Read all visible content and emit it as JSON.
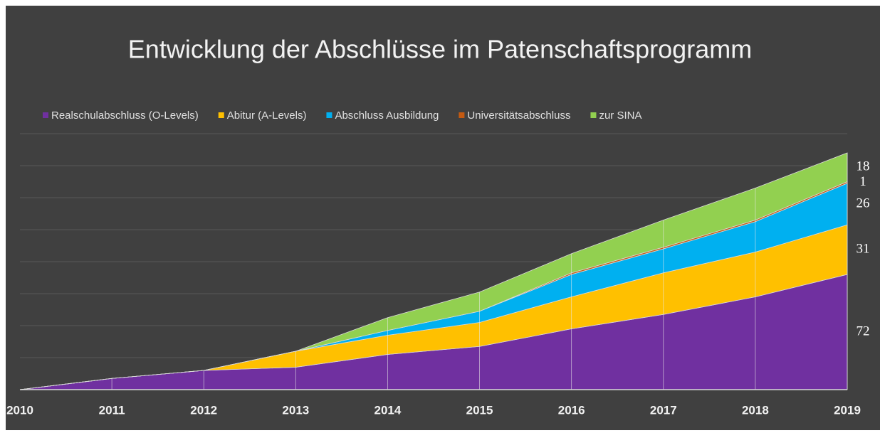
{
  "chart_data": {
    "type": "area_stacked",
    "title": "Entwicklung der Abschlüsse im Patenschaftsprogramm",
    "categories": [
      "2010",
      "2011",
      "2012",
      "2013",
      "2014",
      "2015",
      "2016",
      "2017",
      "2018",
      "2019"
    ],
    "series": [
      {
        "name": "Realschulabschluss (O-Levels)",
        "color": "#7030a0",
        "values": [
          0,
          7,
          12,
          14,
          22,
          27,
          38,
          47,
          58,
          72
        ]
      },
      {
        "name": "Abitur (A-Levels)",
        "color": "#ffc000",
        "values": [
          0,
          0,
          0,
          10,
          12,
          15,
          20,
          26,
          28,
          31
        ]
      },
      {
        "name": "Abschluss Ausbildung",
        "color": "#00b0f0",
        "values": [
          0,
          0,
          0,
          0,
          3,
          7,
          14,
          15,
          19,
          26
        ]
      },
      {
        "name": "Universitätsabschluss",
        "color": "#c55a11",
        "values": [
          0,
          0,
          0,
          0,
          0,
          0,
          1,
          1,
          1,
          1
        ]
      },
      {
        "name": "zur SINA",
        "color": "#92d050",
        "values": [
          0,
          0,
          0,
          0,
          8,
          12,
          12,
          17,
          20,
          18
        ]
      }
    ],
    "ylim": [
      0,
      160
    ],
    "yticks": [
      0,
      20,
      40,
      60,
      80,
      100,
      120,
      140,
      160
    ],
    "grid": true
  }
}
